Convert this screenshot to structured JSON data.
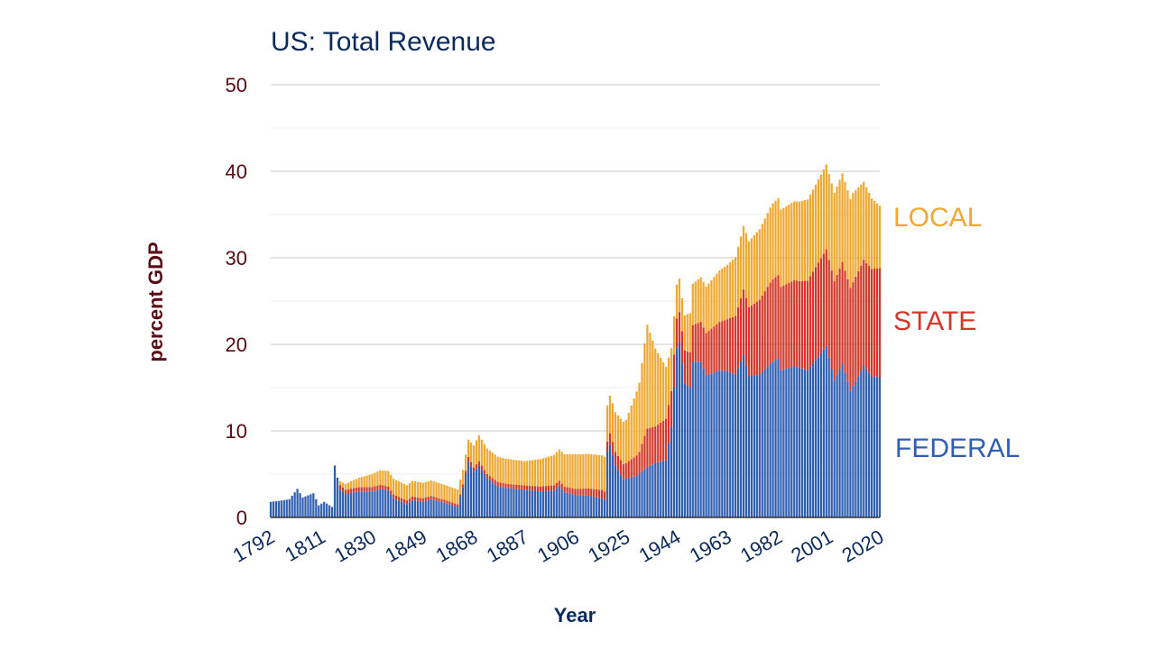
{
  "chart_data": {
    "type": "bar",
    "stacked": true,
    "title": "US: Total Revenue",
    "xlabel": "Year",
    "ylabel": "percent GDP",
    "ylim": [
      0,
      50
    ],
    "yticks": [
      0,
      10,
      20,
      30,
      40,
      50
    ],
    "xlim": [
      1792,
      2020
    ],
    "xtick_labels": [
      "1792",
      "1811",
      "1830",
      "1849",
      "1868",
      "1887",
      "1906",
      "1925",
      "1944",
      "1963",
      "1982",
      "2001",
      "2020"
    ],
    "grid": true,
    "legend": "right-side labels",
    "colors": {
      "federal": "#2f5fb3",
      "state": "#d2382a",
      "local": "#f0a830",
      "grid": "#cccccc"
    },
    "series": [
      {
        "name": "FEDERAL",
        "key": "federal",
        "anchors": [
          [
            1792,
            1.8
          ],
          [
            1795,
            1.9
          ],
          [
            1799,
            2.1
          ],
          [
            1802,
            3.3
          ],
          [
            1804,
            2.3
          ],
          [
            1808,
            2.8
          ],
          [
            1810,
            1.4
          ],
          [
            1812,
            1.8
          ],
          [
            1815,
            1.2
          ],
          [
            1816,
            6.0
          ],
          [
            1818,
            3.2
          ],
          [
            1820,
            2.7
          ],
          [
            1825,
            3.0
          ],
          [
            1830,
            3.0
          ],
          [
            1833,
            3.3
          ],
          [
            1836,
            3.1
          ],
          [
            1838,
            2.2
          ],
          [
            1843,
            1.5
          ],
          [
            1845,
            2.0
          ],
          [
            1849,
            1.8
          ],
          [
            1852,
            2.1
          ],
          [
            1858,
            1.6
          ],
          [
            1862,
            1.2
          ],
          [
            1864,
            3.5
          ],
          [
            1866,
            6.5
          ],
          [
            1868,
            5.3
          ],
          [
            1870,
            6.0
          ],
          [
            1873,
            4.5
          ],
          [
            1877,
            3.6
          ],
          [
            1880,
            3.4
          ],
          [
            1887,
            3.2
          ],
          [
            1893,
            3.0
          ],
          [
            1898,
            3.1
          ],
          [
            1900,
            3.6
          ],
          [
            1902,
            2.9
          ],
          [
            1906,
            2.6
          ],
          [
            1911,
            2.5
          ],
          [
            1916,
            2.2
          ],
          [
            1917,
            2.0
          ],
          [
            1918,
            7.6
          ],
          [
            1919,
            8.4
          ],
          [
            1921,
            6.0
          ],
          [
            1924,
            4.4
          ],
          [
            1929,
            4.8
          ],
          [
            1932,
            5.6
          ],
          [
            1936,
            6.3
          ],
          [
            1940,
            6.6
          ],
          [
            1942,
            10.5
          ],
          [
            1944,
            19.6
          ],
          [
            1945,
            20.2
          ],
          [
            1947,
            15.5
          ],
          [
            1949,
            15.0
          ],
          [
            1950,
            18.0
          ],
          [
            1953,
            18.0
          ],
          [
            1955,
            16.4
          ],
          [
            1960,
            17.0
          ],
          [
            1963,
            16.9
          ],
          [
            1966,
            16.5
          ],
          [
            1969,
            18.8
          ],
          [
            1971,
            16.3
          ],
          [
            1975,
            16.5
          ],
          [
            1979,
            17.8
          ],
          [
            1982,
            18.4
          ],
          [
            1983,
            17.0
          ],
          [
            1988,
            17.5
          ],
          [
            1993,
            17.0
          ],
          [
            1998,
            19.0
          ],
          [
            2000,
            19.8
          ],
          [
            2003,
            15.8
          ],
          [
            2006,
            17.8
          ],
          [
            2009,
            14.6
          ],
          [
            2014,
            17.5
          ],
          [
            2017,
            16.3
          ],
          [
            2020,
            16.2
          ]
        ]
      },
      {
        "name": "STATE",
        "key": "state",
        "anchors": [
          [
            1792,
            0
          ],
          [
            1817,
            0
          ],
          [
            1818,
            0.5
          ],
          [
            1830,
            0.5
          ],
          [
            1849,
            0.4
          ],
          [
            1864,
            0.3
          ],
          [
            1866,
            0.5
          ],
          [
            1887,
            0.5
          ],
          [
            1906,
            0.7
          ],
          [
            1917,
            1.0
          ],
          [
            1920,
            1.5
          ],
          [
            1925,
            1.8
          ],
          [
            1930,
            2.5
          ],
          [
            1933,
            4.5
          ],
          [
            1936,
            4.2
          ],
          [
            1940,
            4.8
          ],
          [
            1944,
            3.4
          ],
          [
            1950,
            4.2
          ],
          [
            1963,
            6.0
          ],
          [
            1970,
            7.8
          ],
          [
            1980,
            9.5
          ],
          [
            1990,
            10.0
          ],
          [
            2001,
            11.3
          ],
          [
            2003,
            11.5
          ],
          [
            2010,
            12.0
          ],
          [
            2020,
            12.6
          ]
        ]
      },
      {
        "name": "LOCAL",
        "key": "local",
        "anchors": [
          [
            1792,
            0
          ],
          [
            1817,
            0
          ],
          [
            1818,
            0.5
          ],
          [
            1830,
            1.5
          ],
          [
            1836,
            1.8
          ],
          [
            1849,
            1.8
          ],
          [
            1864,
            1.7
          ],
          [
            1866,
            2.0
          ],
          [
            1870,
            3.0
          ],
          [
            1887,
            2.8
          ],
          [
            1906,
            4.0
          ],
          [
            1917,
            4.0
          ],
          [
            1920,
            4.5
          ],
          [
            1925,
            5.0
          ],
          [
            1930,
            8.0
          ],
          [
            1933,
            12.0
          ],
          [
            1936,
            9.0
          ],
          [
            1940,
            6.0
          ],
          [
            1944,
            3.9
          ],
          [
            1946,
            3.8
          ],
          [
            1950,
            4.8
          ],
          [
            1963,
            6.3
          ],
          [
            1970,
            7.5
          ],
          [
            1980,
            8.8
          ],
          [
            1990,
            9.2
          ],
          [
            2000,
            9.8
          ],
          [
            2003,
            10.2
          ],
          [
            2010,
            10.3
          ],
          [
            2020,
            7.2
          ]
        ]
      }
    ]
  }
}
